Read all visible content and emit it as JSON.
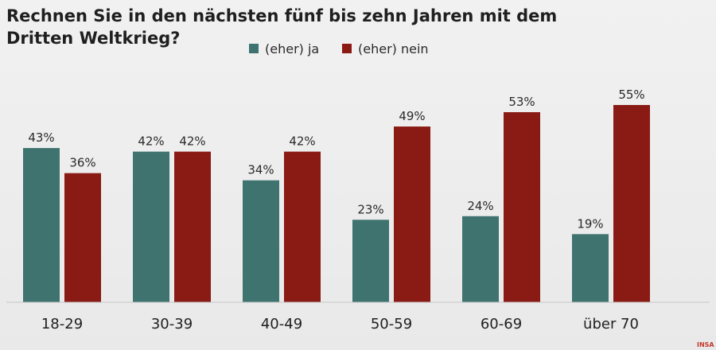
{
  "chart_data": {
    "type": "bar",
    "title_lines": [
      "Rechnen Sie in den nächsten fünf bis zehn Jahren mit dem",
      "Dritten Weltkrieg?"
    ],
    "categories": [
      "18-29",
      "30-39",
      "40-49",
      "50-59",
      "60-69",
      "über 70"
    ],
    "series": [
      {
        "name": "(eher) ja",
        "color": "#3e7370",
        "values": [
          43,
          42,
          34,
          23,
          24,
          19
        ],
        "labels": [
          "43%",
          "42%",
          "34%",
          "23%",
          "24%",
          "19%"
        ]
      },
      {
        "name": "(eher) nein",
        "color": "#8a1a14",
        "values": [
          36,
          42,
          42,
          49,
          53,
          55
        ],
        "labels": [
          "36%",
          "42%",
          "42%",
          "49%",
          "53%",
          "55%"
        ]
      }
    ],
    "ylim": [
      0,
      60
    ],
    "xlabel": "",
    "ylabel": "",
    "grid": false,
    "legend_position": "top"
  },
  "logo": {
    "text": "INSA",
    "color": "#c0392b"
  }
}
